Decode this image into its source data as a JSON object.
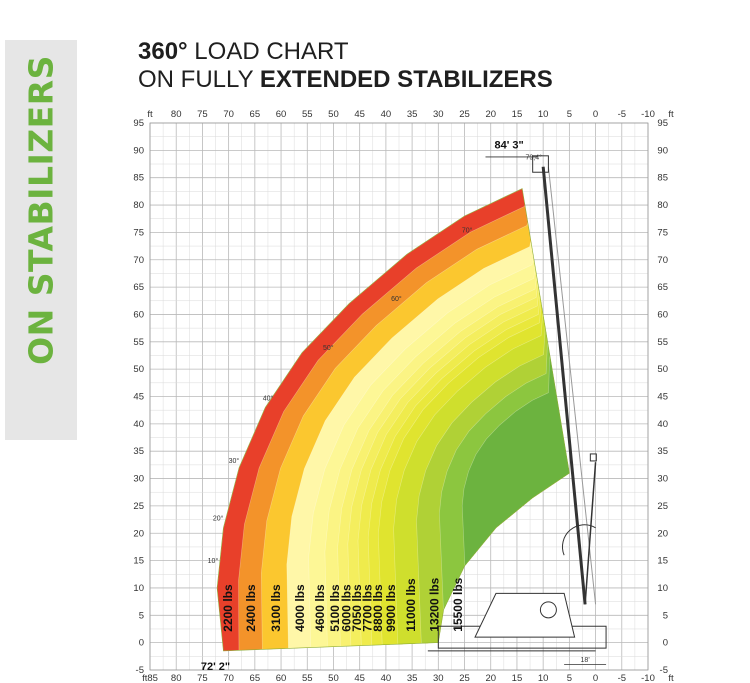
{
  "side_label": "ON STABILIZERS",
  "title": {
    "degree": "360°",
    "line1_rest": " LOAD CHART",
    "line2_prefix": "ON FULLY ",
    "line2_bold": "EXTENDED STABILIZERS"
  },
  "chart_data": {
    "type": "area",
    "x_unit": "ft",
    "y_unit": "ft",
    "xlim": [
      85,
      -10
    ],
    "ylim": [
      -5,
      95
    ],
    "x_ticks": [
      85,
      80,
      75,
      70,
      65,
      60,
      55,
      50,
      45,
      40,
      35,
      30,
      25,
      20,
      15,
      10,
      5,
      0,
      -5,
      -10
    ],
    "y_ticks": [
      95,
      90,
      85,
      80,
      75,
      70,
      65,
      60,
      55,
      50,
      45,
      40,
      35,
      30,
      25,
      20,
      15,
      10,
      5,
      0,
      -5
    ],
    "grid": true,
    "axis_unit_label": "ft",
    "bottom_left_label": "ft85",
    "max_height_label": "84' 3\"",
    "max_reach_label": "72' 2\"",
    "max_angle_label": "79,4°",
    "boom_angles": [
      "10°",
      "20°",
      "30°",
      "40°",
      "50°",
      "60°",
      "70°"
    ],
    "dimension_label": "18'",
    "outer_envelope": [
      [
        71,
        -1.5
      ],
      [
        72.2,
        10
      ],
      [
        71,
        21
      ],
      [
        68,
        32
      ],
      [
        63,
        43
      ],
      [
        56,
        53
      ],
      [
        47,
        62
      ],
      [
        36,
        71
      ],
      [
        25,
        78
      ],
      [
        14,
        83
      ]
    ],
    "inner_envelope": [
      [
        5,
        31
      ],
      [
        12,
        26.5
      ],
      [
        19,
        21
      ],
      [
        25,
        14
      ],
      [
        29,
        6
      ],
      [
        30,
        0
      ]
    ],
    "zones": [
      {
        "label": "2200 lbs",
        "reach": 72.2,
        "color": "#e8402a"
      },
      {
        "label": "2400 lbs",
        "reach": 68.0,
        "color": "#f3932a"
      },
      {
        "label": "3100 lbs",
        "reach": 63.5,
        "color": "#fbc72f"
      },
      {
        "label": "4000 lbs",
        "reach": 58.5,
        "color": "#fff7a8"
      },
      {
        "label": "4600 lbs",
        "reach": 54.2,
        "color": "#fdf796"
      },
      {
        "label": "5100 lbs",
        "reach": 51.0,
        "color": "#fbf484"
      },
      {
        "label": "6000 lbs",
        "reach": 48.5,
        "color": "#f8f170"
      },
      {
        "label": "7050 lbs",
        "reach": 46.5,
        "color": "#f4ee5e"
      },
      {
        "label": "7700 lbs",
        "reach": 44.5,
        "color": "#efeb4c"
      },
      {
        "label": "8800 lbs",
        "reach": 42.5,
        "color": "#e9e83c"
      },
      {
        "label": "9900 lbs",
        "reach": 40.5,
        "color": "#e0e42f"
      },
      {
        "label": "11000 lbs",
        "reach": 37.5,
        "color": "#cfdf2d"
      },
      {
        "label": "13200 lbs",
        "reach": 33.0,
        "color": "#b0d136"
      },
      {
        "label": "15500 lbs",
        "reach": 28.5,
        "color": "#8cc63f"
      },
      {
        "label": "",
        "reach": 24.0,
        "color": "#6cb33f"
      }
    ]
  }
}
